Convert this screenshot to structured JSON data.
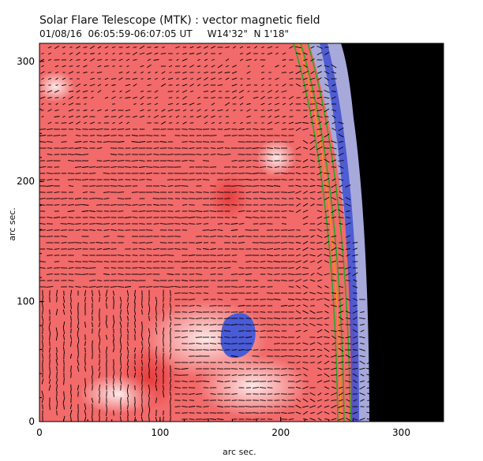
{
  "figure": {
    "title": "Solar Flare Telescope (MTK) : vector magnetic field",
    "subtitle": "01/08/16  06:05:59-06:07:05 UT     W14'32\"  N 1'18\"",
    "xlabel": "arc sec.",
    "ylabel": "arc sec.",
    "x_ticks": [
      "0",
      "100",
      "200",
      "300"
    ],
    "y_ticks": [
      "0",
      "100",
      "200",
      "300"
    ],
    "colors": {
      "positive_field": "#f06565",
      "negative_field": "#4a5bd6",
      "weak_field": "#f4e9ea",
      "off_limb": "#000000",
      "contour": "#22aa22",
      "vectors": "#000000"
    }
  },
  "chart_data": {
    "type": "heatmap",
    "xlim": [
      0,
      335
    ],
    "ylim": [
      0,
      315
    ],
    "grid": false,
    "features": [
      "positive polarity background",
      "negative polarity spot near (165, 70)",
      "solar limb at right edge"
    ]
  }
}
